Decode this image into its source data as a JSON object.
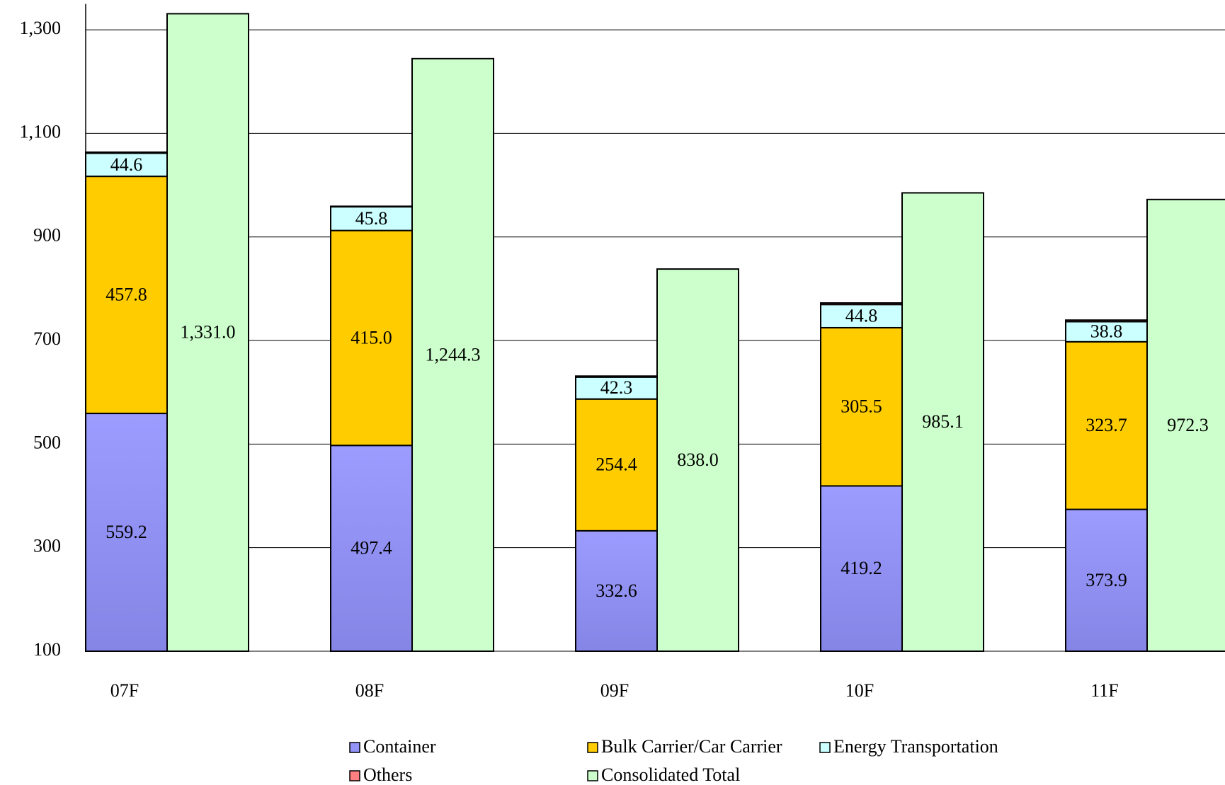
{
  "chart_data": {
    "type": "stacked_bar",
    "categories": [
      "07F",
      "08F",
      "09F",
      "10F",
      "11F"
    ],
    "series": [
      {
        "name": "Container",
        "color": "#9494f8",
        "values": [
          559.2,
          497.4,
          332.6,
          419.2,
          373.9
        ]
      },
      {
        "name": "Bulk Carrier/Car Carrier",
        "color": "#ffcc00",
        "values": [
          457.8,
          415.0,
          254.4,
          305.5,
          323.7
        ],
        "value_labels": [
          "457.8",
          "415.0",
          "254.4",
          "305.5",
          "323.7"
        ]
      },
      {
        "name": "Energy Transportation",
        "color": "#ccffff",
        "values": [
          44.6,
          45.8,
          42.3,
          44.8,
          38.8
        ]
      },
      {
        "name": "Others",
        "color": "#ff8080",
        "values": [
          2,
          1,
          2,
          3,
          3
        ]
      },
      {
        "name": "Consolidated Total",
        "color": "#ccffcc",
        "stack": "total",
        "values": [
          1331.0,
          1244.3,
          838.0,
          985.1,
          972.3
        ],
        "value_labels": [
          "1,331.0",
          "1,244.3",
          "838.0",
          "985.1",
          "972.3"
        ]
      }
    ],
    "ylim": [
      100,
      1350
    ],
    "yticks": [
      100,
      300,
      500,
      700,
      900,
      {
        "value": 1100,
        "label": "1,100"
      },
      {
        "value": 1300,
        "label": "1,300"
      }
    ],
    "grid": true
  }
}
